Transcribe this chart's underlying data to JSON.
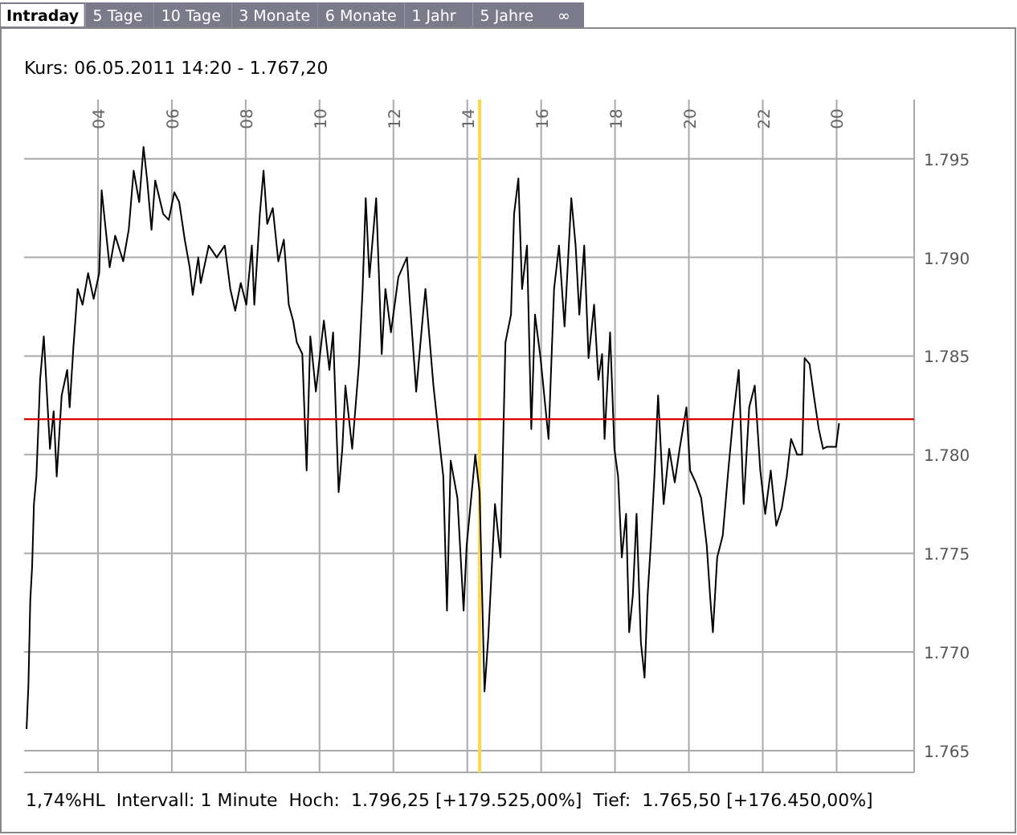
{
  "chart_data": {
    "type": "line",
    "title": "Kurs: 06.05.2011 14:20 - 1.767,20",
    "x": [
      "2011-05-06T02:04",
      "2011-05-06T02:07",
      "2011-05-06T02:10",
      "2011-05-06T02:13",
      "2011-05-06T02:16",
      "2011-05-06T02:20",
      "2011-05-06T02:23",
      "2011-05-06T02:26",
      "2011-05-06T02:32",
      "2011-05-06T02:42",
      "2011-05-06T02:48",
      "2011-05-06T02:53",
      "2011-05-06T03:01",
      "2011-05-06T03:10",
      "2011-05-06T03:14",
      "2011-05-06T03:20",
      "2011-05-06T03:27",
      "2011-05-06T03:35",
      "2011-05-06T03:44",
      "2011-05-06T03:53",
      "2011-05-06T04:02",
      "2011-05-06T04:06",
      "2011-05-06T04:19",
      "2011-05-06T04:28",
      "2011-05-06T04:41",
      "2011-05-06T04:50",
      "2011-05-06T04:58",
      "2011-05-06T05:07",
      "2011-05-06T05:14",
      "2011-05-06T05:20",
      "2011-05-06T05:27",
      "2011-05-06T05:33",
      "2011-05-06T05:46",
      "2011-05-06T05:55",
      "2011-05-06T06:04",
      "2011-05-06T06:12",
      "2011-05-06T06:21",
      "2011-05-06T06:29",
      "2011-05-06T06:34",
      "2011-05-06T06:43",
      "2011-05-06T06:47",
      "2011-05-06T07:00",
      "2011-05-06T07:13",
      "2011-05-06T07:26",
      "2011-05-06T07:35",
      "2011-05-06T07:43",
      "2011-05-06T07:52",
      "2011-05-06T08:01",
      "2011-05-06T08:10",
      "2011-05-06T08:14",
      "2011-05-06T08:23",
      "2011-05-06T08:29",
      "2011-05-06T08:35",
      "2011-05-06T08:44",
      "2011-05-06T08:53",
      "2011-05-06T09:02",
      "2011-05-06T09:10",
      "2011-05-06T09:17",
      "2011-05-06T09:23",
      "2011-05-06T09:32",
      "2011-05-06T09:39",
      "2011-05-06T09:45",
      "2011-05-06T09:54",
      "2011-05-06T10:07",
      "2011-05-06T10:16",
      "2011-05-06T10:22",
      "2011-05-06T10:31",
      "2011-05-06T10:37",
      "2011-05-06T10:42",
      "2011-05-06T10:53",
      "2011-05-06T11:04",
      "2011-05-06T11:10",
      "2011-05-06T11:15",
      "2011-05-06T11:21",
      "2011-05-06T11:32",
      "2011-05-06T11:41",
      "2011-05-06T11:47",
      "2011-05-06T11:56",
      "2011-05-06T12:08",
      "2011-05-06T12:22",
      "2011-05-06T12:26",
      "2011-05-06T12:37",
      "2011-05-06T12:48",
      "2011-05-06T12:52",
      "2011-05-06T13:05",
      "2011-05-06T13:16",
      "2011-05-06T13:21",
      "2011-05-06T13:27",
      "2011-05-06T13:33",
      "2011-05-06T13:44",
      "2011-05-06T13:54",
      "2011-05-06T13:59",
      "2011-05-06T14:13",
      "2011-05-06T14:20",
      "2011-05-06T14:28",
      "2011-05-06T14:34",
      "2011-05-06T14:45",
      "2011-05-06T14:54",
      "2011-05-06T15:02",
      "2011-05-06T15:11",
      "2011-05-06T15:16",
      "2011-05-06T15:23",
      "2011-05-06T15:29",
      "2011-05-06T15:37",
      "2011-05-06T15:44",
      "2011-05-06T15:50",
      "2011-05-06T15:59",
      "2011-05-06T16:12",
      "2011-05-06T16:21",
      "2011-05-06T16:29",
      "2011-05-06T16:38",
      "2011-05-06T16:49",
      "2011-05-06T16:56",
      "2011-05-06T17:02",
      "2011-05-06T17:10",
      "2011-05-06T17:17",
      "2011-05-06T17:26",
      "2011-05-06T17:33",
      "2011-05-06T17:39",
      "2011-05-06T17:43",
      "2011-05-06T17:52",
      "2011-05-06T17:59",
      "2011-05-06T18:05",
      "2011-05-06T18:11",
      "2011-05-06T18:18",
      "2011-05-06T18:23",
      "2011-05-06T18:29",
      "2011-05-06T18:35",
      "2011-05-06T18:42",
      "2011-05-06T18:48",
      "2011-05-06T18:53",
      "2011-05-06T18:58",
      "2011-05-06T19:04",
      "2011-05-06T19:10",
      "2011-05-06T19:19",
      "2011-05-06T19:28",
      "2011-05-06T19:37",
      "2011-05-06T19:45",
      "2011-05-06T19:56",
      "2011-05-06T20:02",
      "2011-05-06T20:11",
      "2011-05-06T20:20",
      "2011-05-06T20:29",
      "2011-05-06T20:35",
      "2011-05-06T20:39",
      "2011-05-06T20:46",
      "2011-05-06T20:55",
      "2011-05-06T21:04",
      "2011-05-06T21:12",
      "2011-05-06T21:21",
      "2011-05-06T21:29",
      "2011-05-06T21:38",
      "2011-05-06T21:47",
      "2011-05-06T21:56",
      "2011-05-06T22:04",
      "2011-05-06T22:13",
      "2011-05-06T22:22",
      "2011-05-06T22:31",
      "2011-05-06T22:39",
      "2011-05-06T22:46",
      "2011-05-06T22:56",
      "2011-05-06T23:04",
      "2011-05-06T23:08",
      "2011-05-06T23:16",
      "2011-05-06T23:23",
      "2011-05-06T23:31",
      "2011-05-06T23:38",
      "2011-05-06T23:44",
      "2011-05-06T23:59",
      "2011-05-07T00:04"
    ],
    "series": [
      {
        "color": "#000000",
        "values": [
          1766.1,
          1768.3,
          1772.6,
          1774.3,
          1777.5,
          1778.9,
          1781.3,
          1783.8,
          1786.0,
          1780.3,
          1782.2,
          1778.9,
          1783.0,
          1784.3,
          1782.4,
          1785.4,
          1788.4,
          1787.6,
          1789.2,
          1787.9,
          1789.2,
          1793.4,
          1789.5,
          1791.1,
          1789.8,
          1791.4,
          1794.4,
          1792.8,
          1795.6,
          1793.9,
          1791.4,
          1793.9,
          1792.2,
          1791.9,
          1793.3,
          1792.8,
          1790.9,
          1789.5,
          1788.1,
          1790.0,
          1788.7,
          1790.6,
          1790.0,
          1790.6,
          1788.4,
          1787.3,
          1788.7,
          1787.6,
          1790.6,
          1787.6,
          1792.2,
          1794.4,
          1791.7,
          1792.5,
          1789.8,
          1790.9,
          1787.6,
          1786.8,
          1785.7,
          1785.1,
          1779.2,
          1786.0,
          1783.2,
          1786.8,
          1784.3,
          1786.2,
          1778.1,
          1780.3,
          1783.5,
          1780.3,
          1784.6,
          1788.4,
          1793.0,
          1789.0,
          1793.0,
          1785.1,
          1788.4,
          1786.2,
          1789.0,
          1790.0,
          1788.1,
          1783.2,
          1787.1,
          1788.4,
          1783.5,
          1780.3,
          1778.9,
          1772.1,
          1779.7,
          1777.8,
          1772.1,
          1775.4,
          1780.0,
          1778.1,
          1768.0,
          1770.7,
          1777.5,
          1774.8,
          1785.7,
          1787.1,
          1792.2,
          1794.0,
          1788.4,
          1790.6,
          1781.3,
          1787.1,
          1784.9,
          1780.8,
          1788.4,
          1790.6,
          1786.5,
          1793.0,
          1790.6,
          1787.1,
          1790.6,
          1784.9,
          1787.6,
          1783.8,
          1785.1,
          1780.8,
          1786.2,
          1780.3,
          1778.9,
          1774.8,
          1777.0,
          1771.0,
          1772.9,
          1777.0,
          1770.5,
          1768.7,
          1772.9,
          1775.4,
          1778.9,
          1783.0,
          1777.5,
          1780.3,
          1778.6,
          1780.3,
          1782.4,
          1779.2,
          1778.6,
          1777.8,
          1775.4,
          1772.6,
          1771.0,
          1774.8,
          1775.9,
          1779.2,
          1781.9,
          1784.3,
          1777.5,
          1782.4,
          1783.5,
          1779.2,
          1777.0,
          1779.2,
          1776.4,
          1777.3,
          1778.9,
          1780.8,
          1780.0,
          1780.0,
          1784.9,
          1784.6,
          1783.0,
          1781.3,
          1780.3,
          1780.4,
          1780.4,
          1781.6
        ]
      }
    ],
    "xlim": [
      "2011-05-06T02:00",
      "2011-05-07T02:06"
    ],
    "xticks": [
      {
        "value": "2011-05-06T04:00",
        "label": "04"
      },
      {
        "value": "2011-05-06T06:00",
        "label": "06"
      },
      {
        "value": "2011-05-06T08:00",
        "label": "08"
      },
      {
        "value": "2011-05-06T10:00",
        "label": "10"
      },
      {
        "value": "2011-05-06T12:00",
        "label": "12"
      },
      {
        "value": "2011-05-06T14:00",
        "label": "14"
      },
      {
        "value": "2011-05-06T16:00",
        "label": "16"
      },
      {
        "value": "2011-05-06T18:00",
        "label": "18"
      },
      {
        "value": "2011-05-06T20:00",
        "label": "20"
      },
      {
        "value": "2011-05-06T22:00",
        "label": "22"
      },
      {
        "value": "2011-05-07T00:00",
        "label": "00"
      }
    ],
    "ylim": [
      1763.9,
      1798
    ],
    "yticks": [
      {
        "value": 1765,
        "label": "1.765"
      },
      {
        "value": 1770,
        "label": "1.770"
      },
      {
        "value": 1775,
        "label": "1.775"
      },
      {
        "value": 1780,
        "label": "1.780"
      },
      {
        "value": 1785,
        "label": "1.785"
      },
      {
        "value": 1790,
        "label": "1.790"
      },
      {
        "value": 1795,
        "label": "1.795"
      }
    ],
    "grid": true,
    "marker": "none",
    "line_style": "solid",
    "ref_lines": [
      {
        "axis": "y",
        "value": 1781.8,
        "color": "#e00000"
      },
      {
        "axis": "x",
        "value": "2011-05-06T14:20",
        "color": "#ffd84a"
      }
    ],
    "annotations": [
      "Intraday",
      "5 Tage",
      "10 Tage",
      "3 Monate",
      "6 Monate",
      "1 Jahr",
      "5 Jahre",
      "∞",
      "1,74%HL  Intervall: 1 Minute  Hoch:  1.796,25 [+179.525,00%]  Tief:  1.765,50 [+176.450,00%]"
    ]
  }
}
